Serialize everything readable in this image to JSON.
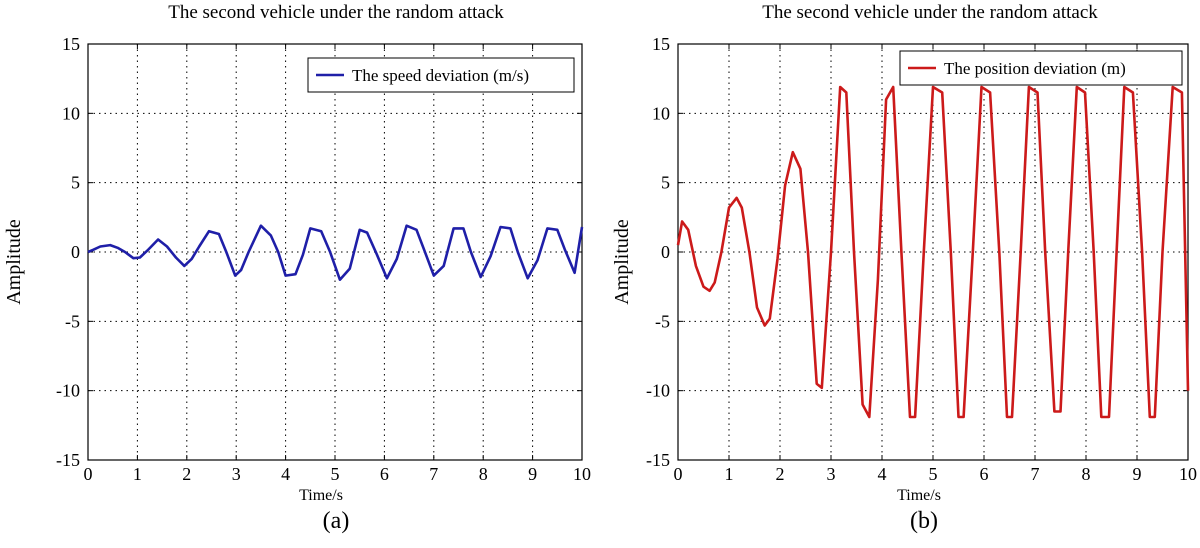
{
  "chart_data": [
    {
      "type": "line",
      "title": "The second vehicle under the random attack",
      "xlabel": "Time/s",
      "ylabel": "Amplitude",
      "xlim": [
        0,
        10
      ],
      "ylim": [
        -15,
        15
      ],
      "xticks": [
        0,
        1,
        2,
        3,
        4,
        5,
        6,
        7,
        8,
        9,
        10
      ],
      "yticks": [
        15,
        10,
        5,
        0,
        -5,
        -10,
        -15
      ],
      "grid": true,
      "legend_position": "top-right",
      "caption": "(a)",
      "series": [
        {
          "name": "The speed deviation (m/s)",
          "color": "#1f1fa8",
          "x": [
            0,
            0.1,
            0.25,
            0.45,
            0.6,
            0.75,
            0.92,
            1.05,
            1.2,
            1.42,
            1.6,
            1.78,
            1.95,
            2.1,
            2.25,
            2.45,
            2.65,
            2.8,
            2.98,
            3.1,
            3.25,
            3.5,
            3.7,
            3.85,
            4.0,
            4.2,
            4.35,
            4.5,
            4.72,
            4.9,
            5.1,
            5.3,
            5.5,
            5.65,
            5.85,
            6.05,
            6.25,
            6.45,
            6.65,
            6.8,
            7.0,
            7.2,
            7.4,
            7.6,
            7.75,
            7.95,
            8.15,
            8.35,
            8.55,
            8.7,
            8.9,
            9.1,
            9.3,
            9.5,
            9.65,
            9.85,
            10.0
          ],
          "y": [
            0,
            0.15,
            0.4,
            0.5,
            0.3,
            0.0,
            -0.45,
            -0.4,
            0.1,
            0.9,
            0.4,
            -0.4,
            -1.0,
            -0.5,
            0.4,
            1.5,
            1.3,
            0.0,
            -1.7,
            -1.3,
            0.0,
            1.9,
            1.2,
            0.0,
            -1.7,
            -1.6,
            -0.2,
            1.7,
            1.5,
            0.0,
            -2.0,
            -1.2,
            1.6,
            1.4,
            -0.2,
            -1.9,
            -0.5,
            1.9,
            1.6,
            0.2,
            -1.7,
            -1.0,
            1.7,
            1.7,
            0.0,
            -1.8,
            -0.3,
            1.8,
            1.7,
            0.0,
            -1.9,
            -0.6,
            1.7,
            1.6,
            0.2,
            -1.5,
            1.8
          ]
        }
      ]
    },
    {
      "type": "line",
      "title": "The second vehicle under the random attack",
      "xlabel": "Time/s",
      "ylabel": "Amplitude",
      "xlim": [
        0,
        10
      ],
      "ylim": [
        -15,
        15
      ],
      "xticks": [
        0,
        1,
        2,
        3,
        4,
        5,
        6,
        7,
        8,
        9,
        10
      ],
      "yticks": [
        15,
        10,
        5,
        0,
        -5,
        -10,
        -15
      ],
      "grid": true,
      "legend_position": "top-right",
      "caption": "(b)",
      "series": [
        {
          "name": "The position deviation (m)",
          "color": "#cc1a1a",
          "x": [
            0,
            0.08,
            0.2,
            0.35,
            0.5,
            0.62,
            0.72,
            0.85,
            1.0,
            1.15,
            1.25,
            1.4,
            1.55,
            1.7,
            1.8,
            1.95,
            2.1,
            2.25,
            2.4,
            2.55,
            2.72,
            2.82,
            3.0,
            3.18,
            3.3,
            3.45,
            3.62,
            3.75,
            3.92,
            4.08,
            4.22,
            4.38,
            4.55,
            4.65,
            4.82,
            5.0,
            5.18,
            5.35,
            5.5,
            5.6,
            5.78,
            5.95,
            6.12,
            6.3,
            6.45,
            6.55,
            6.72,
            6.88,
            7.05,
            7.2,
            7.38,
            7.5,
            7.65,
            7.82,
            7.98,
            8.15,
            8.3,
            8.45,
            8.6,
            8.75,
            8.92,
            9.1,
            9.25,
            9.35,
            9.5,
            9.7,
            9.88,
            10.0
          ],
          "y": [
            0.5,
            2.2,
            1.6,
            -1.0,
            -2.5,
            -2.8,
            -2.2,
            0.0,
            3.2,
            3.9,
            3.2,
            0.0,
            -4.0,
            -5.3,
            -4.8,
            -0.5,
            4.8,
            7.2,
            6.0,
            0.0,
            -9.5,
            -9.8,
            0.0,
            11.9,
            11.5,
            0.0,
            -11.0,
            -11.9,
            -2.0,
            11.0,
            11.9,
            0.0,
            -11.9,
            -11.9,
            0.0,
            11.9,
            11.5,
            0.0,
            -11.9,
            -11.9,
            0.0,
            11.9,
            11.5,
            0.0,
            -11.9,
            -11.9,
            0.0,
            11.9,
            11.5,
            0.0,
            -11.5,
            -11.5,
            0.0,
            11.9,
            11.5,
            0.0,
            -11.9,
            -11.9,
            0.0,
            11.9,
            11.5,
            0.0,
            -11.9,
            -11.9,
            0.0,
            11.9,
            11.5,
            -10.0
          ]
        }
      ]
    }
  ]
}
